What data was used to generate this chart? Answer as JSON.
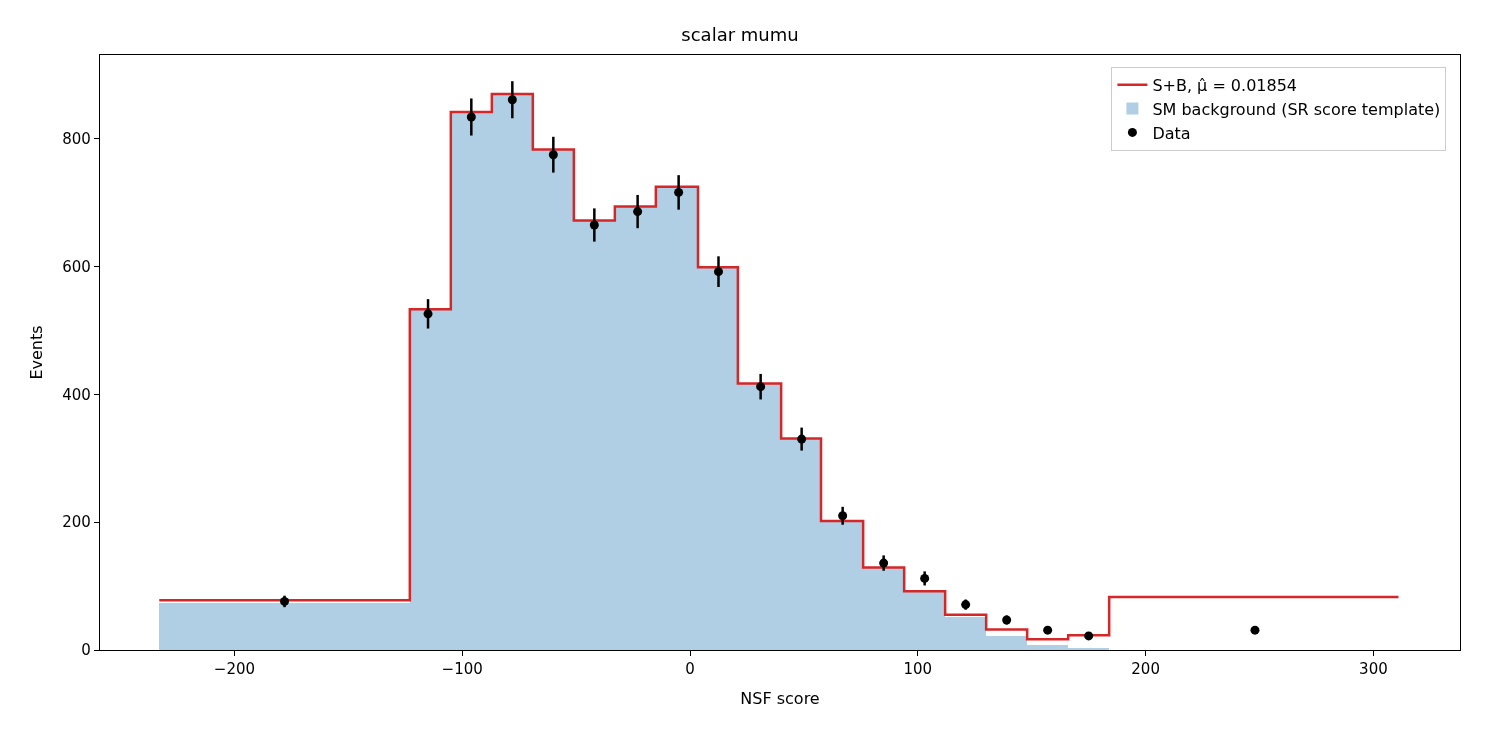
{
  "chart_data": {
    "type": "histogram",
    "title": "scalar mumu",
    "xlabel": "NSF score",
    "ylabel": "Events",
    "bins": [
      -233,
      -123,
      -105,
      -87,
      -69,
      -51,
      -33,
      -15,
      3.5,
      21,
      40,
      57.5,
      76,
      94,
      112,
      130,
      148,
      166,
      184
    ],
    "series": [
      {
        "name": "S+B, μ̂ = 0.01854",
        "type": "step",
        "color": "#d62728",
        "x": [
          -233,
          -123,
          -105,
          -87,
          -69,
          -51,
          -33,
          -15,
          3.5,
          21,
          40,
          57.5,
          76,
          94,
          112,
          130,
          148,
          166,
          184,
          311
        ],
        "values": [
          78,
          533,
          842,
          870,
          783,
          672,
          694,
          725,
          599,
          417,
          331,
          202,
          129,
          92,
          55,
          32,
          17,
          23,
          83,
          83
        ]
      },
      {
        "name": "SM background (SR score template)",
        "color": "#b0cfe4",
        "values": [
          74,
          533,
          842,
          870,
          783,
          672,
          694,
          725,
          599,
          417,
          331,
          202,
          129,
          92,
          51,
          22,
          8,
          3
        ]
      },
      {
        "name": "Data",
        "type": "scatter",
        "color": "#000000",
        "marker": "circle",
        "x": [
          -178,
          -115,
          -96,
          -78,
          -60,
          -42,
          -23,
          -5,
          12.5,
          31,
          49,
          67,
          85,
          103,
          121,
          139,
          157,
          175,
          248
        ],
        "values": [
          76,
          526,
          834,
          861,
          775,
          665,
          686,
          716,
          592,
          412,
          330,
          210,
          136,
          112,
          71,
          47,
          31,
          22,
          31
        ],
        "errors": [
          9,
          23,
          29,
          29,
          28,
          26,
          26,
          27,
          24,
          20,
          18,
          14,
          12,
          11,
          8,
          7,
          6,
          5,
          6
        ]
      }
    ],
    "xlim": [
      -259,
      338
    ],
    "xticks": [
      -200,
      -100,
      0,
      100,
      200,
      300
    ],
    "ylim": [
      0,
      931
    ],
    "yticks": [
      0,
      200,
      400,
      600,
      800
    ],
    "legend": "top right"
  }
}
